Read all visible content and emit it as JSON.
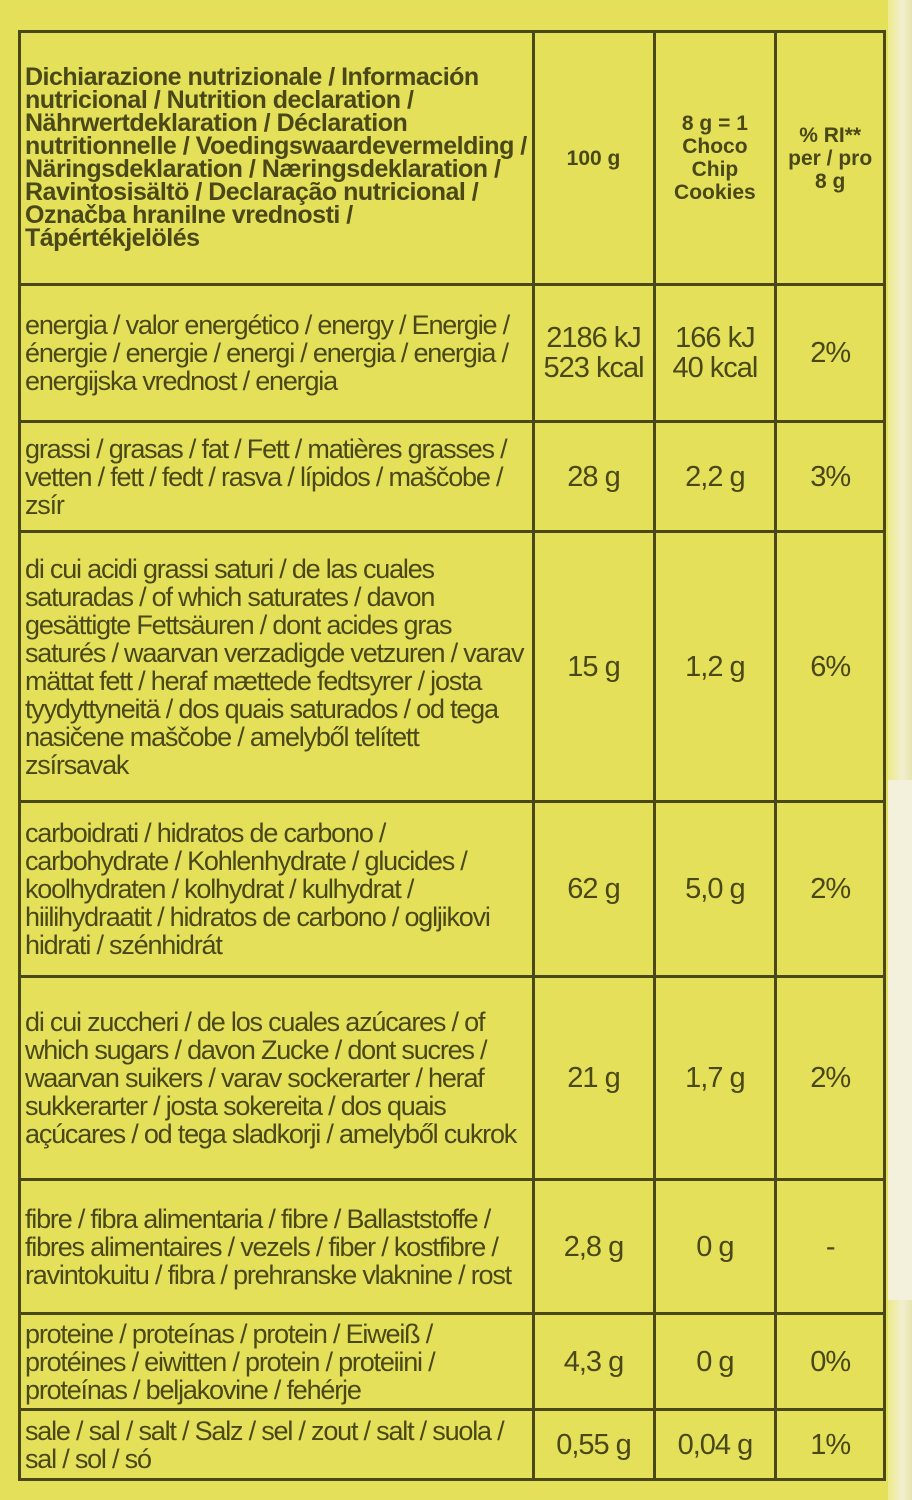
{
  "header": {
    "title": "Dichiarazione nutrizionale / Información nutricional / Nutrition declaration / Nährwertdeklaration / Déclaration nutritionnelle / Voedingswaardevermelding / Näringsdeklaration / Næringsdeklaration / Ravintosisältö / Declaração nutricional / Označba hranilne vrednosti / Tápértékjelölés",
    "col_100g": "100 g",
    "col_portion": "8 g = 1 Choco Chip Cookies",
    "col_ri": "% RI** per / pro 8 g"
  },
  "rows": [
    {
      "name": "energia / valor energético / energy / Energie / énergie / energie / energi / energia / energia / energijska vrednost / energia",
      "per100": "2186 kJ 523 kcal",
      "portion": "166 kJ 40 kcal",
      "ri": "2%"
    },
    {
      "name": "grassi / grasas / fat / Fett / matières grasses / vetten / fett / fedt / rasva / lípidos / maščobe / zsír",
      "per100": "28 g",
      "portion": "2,2 g",
      "ri": "3%"
    },
    {
      "name": "di cui acidi grassi saturi / de las cuales saturadas / of which saturates / davon gesättigte Fettsäuren / dont acides gras saturés / waarvan verzadigde vetzuren / varav mättat fett / heraf mættede fedtsyrer / josta tyydyttyneitä / dos quais saturados / od tega nasičene maščobe / amelyből telített zsírsavak",
      "per100": "15 g",
      "portion": "1,2 g",
      "ri": "6%"
    },
    {
      "name": "carboidrati / hidratos de carbono / carbohydrate / Kohlenhydrate / glucides / koolhydraten / kolhydrat / kulhydrat / hiilihydraatit / hidratos de carbono / ogljikovi hidrati / szénhidrát",
      "per100": "62 g",
      "portion": "5,0 g",
      "ri": "2%"
    },
    {
      "name": "di cui zuccheri / de los cuales azúcares / of which sugars / davon Zucke / dont sucres / waarvan suikers / varav sockerarter / heraf sukkerarter / josta sokereita / dos quais açúcares / od tega sladkorji / amelyből cukrok",
      "per100": "21 g",
      "portion": "1,7 g",
      "ri": "2%"
    },
    {
      "name": "fibre / fibra alimentaria / fibre / Ballaststoffe / fibres alimentaires / vezels / fiber / kostfibre / ravintokuitu / fibra / prehranske vlaknine / rost",
      "per100": "2,8 g",
      "portion": "0 g",
      "ri": "-"
    },
    {
      "name": "proteine / proteínas / protein / Eiweiß / protéines / eiwitten / protein / proteiini / proteínas / beljakovine / fehérje",
      "per100": "4,3 g",
      "portion": "0 g",
      "ri": "0%"
    },
    {
      "name": "sale / sal / salt / Salz / sel / zout / salt / suola / sal / sol / só",
      "per100": "0,55 g",
      "portion": "0,04 g",
      "ri": "1%"
    }
  ],
  "colors": {
    "background": "#e4e05a",
    "ink": "#4a4818"
  }
}
